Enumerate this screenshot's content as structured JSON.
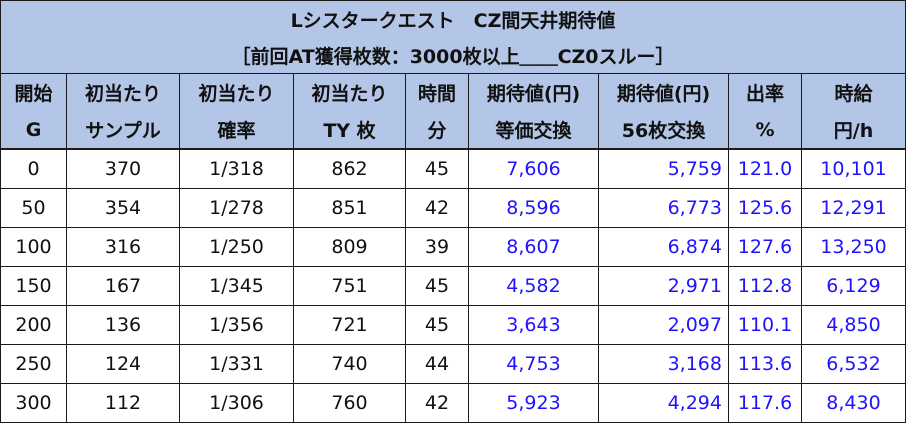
{
  "title": "Lシスタークエスト　CZ間天井期待値",
  "subtitle": "［前回AT獲得枚数：3000枚以上＿＿CZ0スルー］",
  "header": {
    "row1": [
      "開始",
      "初当たり",
      "初当たり",
      "初当たり",
      "時間",
      "期待値(円)",
      "期待値(円)",
      "出率",
      "時給"
    ],
    "row2": [
      "G",
      "サンプル",
      "確率",
      "TY 枚",
      "分",
      "等価交換",
      "56枚交換",
      "%",
      "円/h"
    ]
  },
  "rows": [
    {
      "start": "0",
      "sample": "370",
      "prob": "1/318",
      "ty": "862",
      "time": "45",
      "ev_equal": "7,606",
      "ev_56": "5,759",
      "rate": "121.0",
      "hourly": "10,101"
    },
    {
      "start": "50",
      "sample": "354",
      "prob": "1/278",
      "ty": "851",
      "time": "42",
      "ev_equal": "8,596",
      "ev_56": "6,773",
      "rate": "125.6",
      "hourly": "12,291"
    },
    {
      "start": "100",
      "sample": "316",
      "prob": "1/250",
      "ty": "809",
      "time": "39",
      "ev_equal": "8,607",
      "ev_56": "6,874",
      "rate": "127.6",
      "hourly": "13,250"
    },
    {
      "start": "150",
      "sample": "167",
      "prob": "1/345",
      "ty": "751",
      "time": "45",
      "ev_equal": "4,582",
      "ev_56": "2,971",
      "rate": "112.8",
      "hourly": "6,129"
    },
    {
      "start": "200",
      "sample": "136",
      "prob": "1/356",
      "ty": "721",
      "time": "45",
      "ev_equal": "3,643",
      "ev_56": "2,097",
      "rate": "110.1",
      "hourly": "4,850"
    },
    {
      "start": "250",
      "sample": "124",
      "prob": "1/331",
      "ty": "740",
      "time": "44",
      "ev_equal": "4,753",
      "ev_56": "3,168",
      "rate": "113.6",
      "hourly": "6,532"
    },
    {
      "start": "300",
      "sample": "112",
      "prob": "1/306",
      "ty": "760",
      "time": "42",
      "ev_equal": "5,923",
      "ev_56": "4,294",
      "rate": "117.6",
      "hourly": "8,430"
    }
  ],
  "colors": {
    "header_bg": "#b4c6e7",
    "value_blue": "#1f12ff",
    "border": "#1a1a1a"
  }
}
